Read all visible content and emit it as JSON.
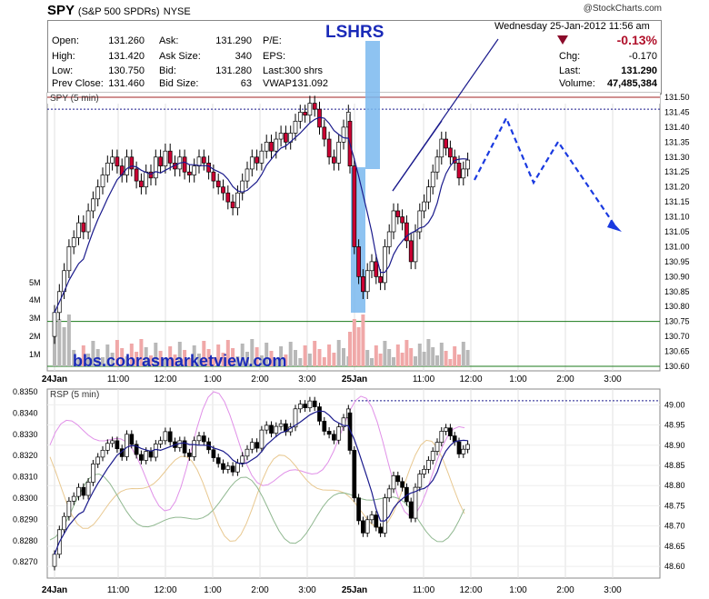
{
  "header": {
    "symbol": "SPY",
    "name": "(S&P 500 SPDRs)",
    "exchange": "NYSE",
    "credit": "@StockCharts.com",
    "date": "Wednesday  25-Jan-2012  11:56 am"
  },
  "quote": {
    "open_label": "Open:",
    "open": "131.260",
    "high_label": "High:",
    "high": "131.420",
    "low_label": "Low:",
    "low": "130.750",
    "prev_label": "Prev Close:",
    "prev": "131.460",
    "ask_label": "Ask:",
    "ask": "131.290",
    "asksize_label": "Ask Size:",
    "asksize": "340",
    "bid_label": "Bid:",
    "bid": "131.280",
    "bidsize_label": "Bid Size:",
    "bidsize": "63",
    "pe_label": "P/E:",
    "eps_label": "EPS:",
    "last_label": "Last:",
    "last_shares": "300 shrs",
    "vwap_label": "VWAP:",
    "vwap": "131.092",
    "change_pct": "-0.13%",
    "chg_label": "Chg:",
    "chg": "-0.170",
    "last2_label": "Last:",
    "last": "131.290",
    "volume_label": "Volume:",
    "volume": "47,485,384",
    "down_color": "#8b0a2a"
  },
  "annotations": {
    "lshrs": "LSHRS",
    "website": "bbs.cobrasmarketview.com"
  },
  "chart_data": [
    {
      "type": "candlestick",
      "title": "SPY (5 min)",
      "x_tick_labels": [
        "24Jan",
        "11:00",
        "12:00",
        "1:00",
        "2:00",
        "3:00",
        "25Jan",
        "11:00",
        "12:00",
        "1:00",
        "2:00",
        "3:00"
      ],
      "y_tick_labels": [
        "131.50",
        "131.45",
        "131.40",
        "131.35",
        "131.30",
        "131.25",
        "131.20",
        "131.15",
        "131.10",
        "131.05",
        "131.00",
        "130.95",
        "130.90",
        "130.85",
        "130.80",
        "130.75",
        "130.70",
        "130.65",
        "130.60"
      ],
      "ylim": [
        130.6,
        131.5
      ],
      "volume_tick_labels": [
        "5M",
        "4M",
        "3M",
        "2M",
        "1M"
      ],
      "reference_lines": {
        "prev_close": 131.46,
        "support": 130.75
      },
      "moving_average": "blue",
      "closes_day1": [
        130.78,
        130.85,
        130.92,
        131.0,
        131.03,
        131.08,
        131.05,
        131.12,
        131.16,
        131.2,
        131.24,
        131.28,
        131.3,
        131.27,
        131.24,
        131.3,
        131.26,
        131.22,
        131.2,
        131.25,
        131.23,
        131.3,
        131.27,
        131.32,
        131.28,
        131.26,
        131.3,
        131.25,
        131.24,
        131.27,
        131.3,
        131.28,
        131.25,
        131.22,
        131.2,
        131.18,
        131.15,
        131.13,
        131.18,
        131.22,
        131.26,
        131.3,
        131.28,
        131.32,
        131.35,
        131.32,
        131.36,
        131.38,
        131.35,
        131.38,
        131.42,
        131.45,
        131.44,
        131.48,
        131.46,
        131.4,
        131.36,
        131.3,
        131.28,
        131.35,
        131.4,
        131.45
      ],
      "closes_day2": [
        131.27,
        131.0,
        130.9,
        130.85,
        130.92,
        130.95,
        130.9,
        130.88,
        131.0,
        131.05,
        131.12,
        131.1,
        131.08,
        131.02,
        130.95,
        131.05,
        131.12,
        131.15,
        131.2,
        131.25,
        131.3,
        131.36,
        131.33,
        131.3,
        131.28,
        131.23,
        131.26,
        131.29
      ],
      "colors": {
        "up": "#ffffff",
        "down": "#cc0033",
        "ma": "#1a1a8c",
        "volume_up": "#b8b8b8",
        "volume_down": "#f0a8a8"
      }
    },
    {
      "type": "candlestick",
      "title": "RSP (5 min)",
      "x_tick_labels": [
        "24Jan",
        "11:00",
        "12:00",
        "1:00",
        "2:00",
        "3:00",
        "25Jan",
        "11:00",
        "12:00",
        "1:00",
        "2:00",
        "3:00"
      ],
      "y_left_tick_labels": [
        "0.8350",
        "0.8340",
        "0.8330",
        "0.8320",
        "0.8310",
        "0.8300",
        "0.8290",
        "0.8280",
        "0.8270"
      ],
      "y_right_tick_labels": [
        "49.00",
        "48.95",
        "48.90",
        "48.85",
        "48.80",
        "48.75",
        "48.70",
        "48.65",
        "48.60"
      ],
      "ylim": [
        48.58,
        49.03
      ],
      "colors": {
        "candle": "#000000",
        "ma": "#1a1a8c",
        "overlay1": "#e090e8",
        "overlay2": "#e8c890",
        "overlay3": "#90b890"
      }
    }
  ]
}
